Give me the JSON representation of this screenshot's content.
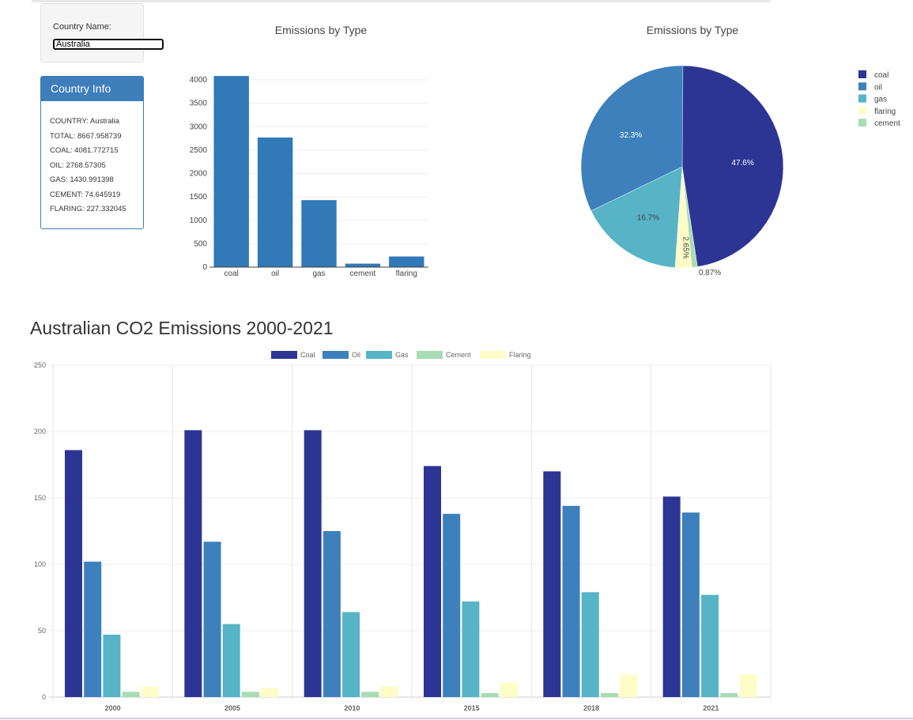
{
  "form": {
    "label": "Country Name:",
    "value": "Australia"
  },
  "info": {
    "title": "Country Info",
    "lines": [
      "COUNTRY: Australia",
      "TOTAL: 8667.958739",
      "COAL: 4081.772715",
      "OIL: 2768.57305",
      "GAS: 1430.991398",
      "CEMENT: 74.645919",
      "FLARING: 227.332045"
    ]
  },
  "colors": {
    "coal": "#2c3593",
    "oil": "#3d80bb",
    "gas": "#56b4c6",
    "cement": "#a8dcb4",
    "flaring": "#fefdc8",
    "bar": "#3179b7",
    "header": "#3d7ebb"
  },
  "chart_data": [
    {
      "type": "bar",
      "title": "Emissions by Type",
      "categories": [
        "coal",
        "oil",
        "gas",
        "cement",
        "flaring"
      ],
      "values": [
        4081.772715,
        2768.57305,
        1430.991398,
        74.645919,
        227.332045
      ],
      "ylim": [
        0,
        4100
      ],
      "yticks": [
        0,
        500,
        1000,
        1500,
        2000,
        2500,
        3000,
        3500,
        4000
      ],
      "grid": true
    },
    {
      "type": "pie",
      "title": "Emissions by Type",
      "labels": [
        "coal",
        "cement",
        "flaring",
        "gas",
        "oil"
      ],
      "values": [
        47.6,
        0.87,
        2.65,
        16.7,
        32.3
      ],
      "text": [
        "47.6%",
        "0.87%",
        "2.65%",
        "16.7%",
        "32.3%"
      ],
      "legend": [
        "coal",
        "oil",
        "gas",
        "flaring",
        "cement"
      ],
      "legend_placement": "top-right"
    },
    {
      "type": "bar",
      "title": "Australian CO2 Emissions 2000-2021",
      "categories": [
        "2000",
        "2005",
        "2010",
        "2015",
        "2018",
        "2021"
      ],
      "ylim": [
        0,
        250
      ],
      "yticks": [
        0,
        50,
        100,
        150,
        200,
        250
      ],
      "grid": true,
      "legend_placement": "top",
      "series": [
        {
          "name": "Coal",
          "values": [
            186,
            201,
            201,
            174,
            170,
            151
          ]
        },
        {
          "name": "Oil",
          "values": [
            102,
            117,
            125,
            138,
            144,
            139
          ]
        },
        {
          "name": "Gas",
          "values": [
            47,
            55,
            64,
            72,
            79,
            77
          ]
        },
        {
          "name": "Cement",
          "values": [
            4,
            4,
            4,
            3,
            3,
            3
          ]
        },
        {
          "name": "Flaring",
          "values": [
            8,
            7,
            8,
            11,
            17,
            17
          ]
        }
      ]
    }
  ]
}
